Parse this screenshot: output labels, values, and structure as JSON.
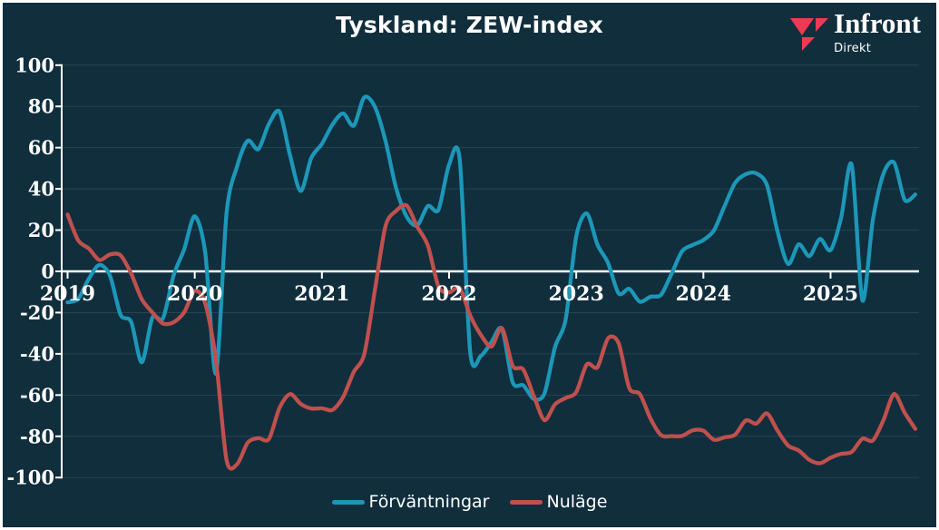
{
  "title": "Tyskland: ZEW-index",
  "logo": {
    "brand": "Infront",
    "sub": "Direkt",
    "mark_color": "#f03a52"
  },
  "colors": {
    "background": "#112e3d",
    "border": "#ffffff",
    "axis": "#ffffff",
    "grid": "rgba(255,255,255,0.10)",
    "expectations": "#1c97b8",
    "current": "#c0504d"
  },
  "legend": [
    {
      "label": "Förväntningar",
      "color": "#1c97b8"
    },
    {
      "label": "Nuläge",
      "color": "#c0504d"
    }
  ],
  "chart_data": {
    "type": "line",
    "title": "Tyskland: ZEW-index",
    "xlabel": "",
    "ylabel": "",
    "frequency": "monthly",
    "x_start": "2019-01",
    "x_end": "2025-09",
    "x_ticks": [
      "2019",
      "2020",
      "2021",
      "2022",
      "2023",
      "2024",
      "2025"
    ],
    "y_ticks": [
      100,
      80,
      60,
      40,
      20,
      0,
      -20,
      -40,
      -60,
      -80,
      -100
    ],
    "ylim": [
      -100,
      100
    ],
    "grid": "horizontal-light",
    "legend_position": "bottom-center",
    "series": [
      {
        "name": "Förväntningar",
        "color": "#1c97b8",
        "values": [
          -15.0,
          -13.4,
          -3.6,
          3.1,
          -2.1,
          -21.1,
          -24.5,
          -44.1,
          -22.5,
          -22.8,
          -2.1,
          10.7,
          26.7,
          8.7,
          -49.5,
          28.2,
          51.0,
          63.4,
          59.3,
          71.5,
          77.4,
          56.1,
          39.0,
          55.0,
          61.8,
          71.2,
          76.6,
          70.7,
          84.4,
          79.8,
          63.3,
          40.4,
          26.5,
          22.3,
          31.7,
          29.9,
          51.7,
          54.3,
          -39.3,
          -41.0,
          -34.3,
          -28.0,
          -53.8,
          -55.3,
          -61.9,
          -59.2,
          -36.7,
          -23.3,
          16.9,
          28.1,
          13.0,
          4.1,
          -10.7,
          -8.5,
          -14.7,
          -12.3,
          -11.4,
          -1.1,
          9.8,
          12.8,
          15.2,
          19.9,
          31.7,
          42.9,
          47.1,
          47.5,
          41.8,
          19.2,
          3.6,
          13.1,
          7.4,
          15.7,
          10.3,
          26.0,
          51.6,
          -14.0,
          25.2,
          47.5,
          52.7,
          34.7,
          37.3
        ]
      },
      {
        "name": "Nuläge",
        "color": "#c0504d",
        "values": [
          27.6,
          15.0,
          11.1,
          5.5,
          8.2,
          7.8,
          -1.1,
          -13.5,
          -19.9,
          -25.3,
          -24.7,
          -19.9,
          -9.5,
          -15.7,
          -43.1,
          -91.5,
          -93.5,
          -83.1,
          -80.9,
          -81.3,
          -66.2,
          -59.5,
          -64.3,
          -66.5,
          -66.4,
          -67.2,
          -61.0,
          -48.8,
          -40.1,
          -9.1,
          21.9,
          29.3,
          31.9,
          21.6,
          12.5,
          -7.4,
          -10.2,
          -8.1,
          -21.4,
          -30.8,
          -36.5,
          -27.6,
          -45.8,
          -47.6,
          -60.5,
          -72.2,
          -64.5,
          -61.4,
          -58.6,
          -45.1,
          -46.5,
          -32.5,
          -34.8,
          -56.5,
          -59.5,
          -71.3,
          -79.4,
          -79.9,
          -79.8,
          -77.1,
          -77.3,
          -81.7,
          -80.5,
          -79.2,
          -72.3,
          -73.8,
          -68.9,
          -77.3,
          -84.5,
          -86.9,
          -91.4,
          -93.1,
          -90.4,
          -88.5,
          -87.6,
          -81.2,
          -82.0,
          -72.0,
          -59.5,
          -68.6,
          -76.4
        ]
      }
    ]
  }
}
